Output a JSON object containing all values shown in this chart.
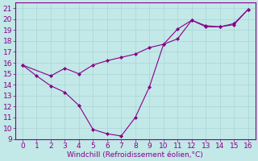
{
  "xlabel": "Windchill (Refroidissement éolien,°C)",
  "bg_color": "#c2e8e8",
  "line_color": "#880088",
  "marker_color": "#880088",
  "xlim": [
    -0.5,
    16.5
  ],
  "ylim": [
    9,
    21.5
  ],
  "xticks": [
    0,
    1,
    2,
    3,
    4,
    5,
    6,
    7,
    8,
    9,
    10,
    11,
    12,
    13,
    14,
    15,
    16
  ],
  "yticks": [
    9,
    10,
    11,
    12,
    13,
    14,
    15,
    16,
    17,
    18,
    19,
    20,
    21
  ],
  "line1_x": [
    0,
    1,
    2,
    3,
    4,
    5,
    6,
    7,
    8,
    9,
    10,
    11,
    12,
    13,
    14,
    15,
    16
  ],
  "line1_y": [
    15.8,
    14.8,
    13.9,
    13.3,
    12.1,
    9.9,
    9.5,
    9.3,
    11.0,
    13.8,
    17.7,
    19.1,
    19.9,
    19.3,
    19.3,
    19.6,
    20.9
  ],
  "line2_x": [
    0,
    2,
    3,
    4,
    5,
    6,
    7,
    8,
    9,
    10,
    11,
    12,
    13,
    14,
    15,
    16
  ],
  "line2_y": [
    15.8,
    14.8,
    15.5,
    15.0,
    15.8,
    16.2,
    16.5,
    16.8,
    17.4,
    17.7,
    18.2,
    19.9,
    19.4,
    19.3,
    19.5,
    20.9
  ],
  "grid_color": "#aad4d4",
  "font_color": "#880088",
  "xlabel_fontsize": 6.5,
  "tick_fontsize": 6.5
}
